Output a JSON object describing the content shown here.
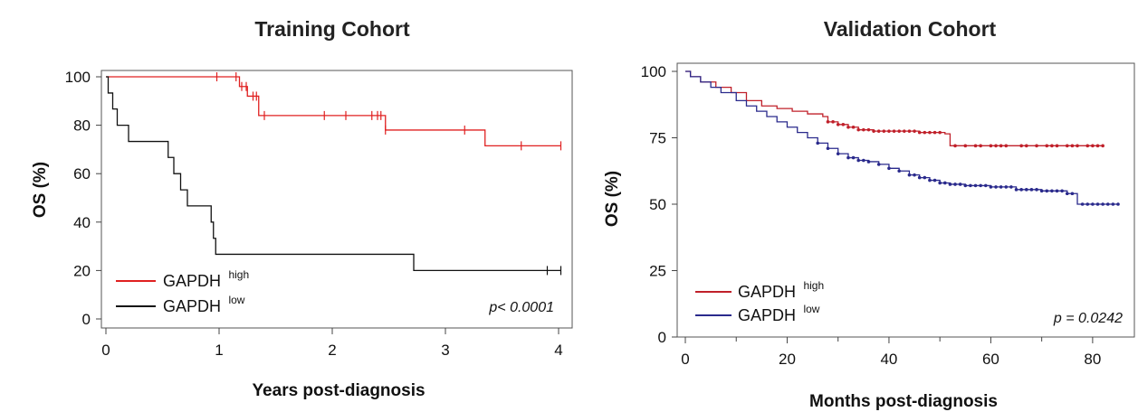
{
  "chart_data": [
    {
      "type": "line",
      "subtype": "kaplan-meier",
      "title": "Training Cohort",
      "xlabel": "Years post-diagnosis",
      "ylabel": "OS (%)",
      "xlim": [
        0,
        4
      ],
      "ylim": [
        0,
        100
      ],
      "xticks": [
        0,
        1,
        2,
        3,
        4
      ],
      "yticks": [
        0,
        20,
        40,
        60,
        80,
        100
      ],
      "frame": "box",
      "legend_position": "bottom-left",
      "legend": [
        {
          "base": "GAPDH",
          "sup": "high"
        },
        {
          "base": "GAPDH",
          "sup": "low"
        }
      ],
      "p_value_text": "p< 0.0001",
      "series": [
        {
          "label_base": "GAPDH",
          "label_sup": "high",
          "color": "#e02020",
          "x": [
            0,
            1.18,
            1.25,
            1.35,
            2.47,
            3.35,
            4.02
          ],
          "y": [
            100,
            96,
            92,
            84,
            78,
            71.5,
            71.5
          ],
          "censor_x": [
            0.98,
            1.15,
            1.2,
            1.24,
            1.3,
            1.33,
            1.4,
            1.93,
            2.12,
            2.35,
            2.4,
            2.43,
            2.47,
            3.17,
            3.67,
            4.02
          ]
        },
        {
          "label_base": "GAPDH",
          "label_sup": "low",
          "color": "#111111",
          "x": [
            0,
            0.02,
            0.06,
            0.1,
            0.2,
            0.55,
            0.6,
            0.66,
            0.72,
            0.76,
            0.93,
            0.95,
            0.97,
            2.72,
            4.02
          ],
          "y": [
            100,
            93.3,
            86.7,
            80,
            73.3,
            66.7,
            60,
            53.3,
            46.7,
            46.7,
            40,
            33.3,
            26.7,
            20,
            20
          ],
          "censor_x": [
            3.9,
            4.02
          ]
        }
      ]
    },
    {
      "type": "line",
      "subtype": "kaplan-meier",
      "title": "Validation  Cohort",
      "xlabel": "Months post-diagnosis",
      "ylabel": "OS (%)",
      "xlim": [
        0,
        85
      ],
      "ylim": [
        0,
        100
      ],
      "xticks": [
        0,
        20,
        40,
        60,
        80
      ],
      "yticks": [
        0,
        25,
        50,
        75,
        100
      ],
      "frame": "box",
      "legend_position": "bottom-left",
      "legend": [
        {
          "base": "GAPDH",
          "sup": "high"
        },
        {
          "base": "GAPDH",
          "sup": "low"
        }
      ],
      "p_value_text": "p = 0.0242",
      "series": [
        {
          "label_base": "GAPDH",
          "label_sup": "high",
          "color": "#c0202a",
          "x": [
            0,
            1,
            3,
            6,
            9,
            12,
            15,
            18,
            21,
            24,
            27,
            28,
            30,
            32,
            34,
            37,
            40,
            44,
            46,
            51,
            52,
            60,
            70,
            82
          ],
          "y": [
            100,
            98,
            96,
            94,
            92,
            89,
            87,
            86,
            85,
            84,
            83,
            81,
            80,
            79,
            78,
            77.5,
            77.5,
            77.5,
            77,
            76.5,
            72,
            72,
            72,
            72
          ],
          "censor_x": [
            28,
            29,
            30,
            31,
            32,
            33,
            34,
            35,
            36,
            37,
            38,
            39,
            40,
            41,
            42,
            43,
            44,
            45,
            46,
            47,
            48,
            49,
            50,
            53,
            55,
            57,
            58,
            60,
            61,
            62,
            63,
            66,
            67,
            69,
            71,
            72,
            73,
            75,
            76,
            77,
            79,
            80,
            81,
            82
          ]
        },
        {
          "label_base": "GAPDH",
          "label_sup": "low",
          "color": "#2a2a8c",
          "x": [
            0,
            1,
            3,
            5,
            7,
            10,
            12,
            14,
            16,
            18,
            20,
            22,
            24,
            26,
            28,
            30,
            32,
            34,
            36,
            38,
            40,
            42,
            44,
            46,
            48,
            50,
            52,
            55,
            60,
            65,
            70,
            75,
            77,
            80,
            85
          ],
          "y": [
            100,
            98,
            96,
            94,
            92,
            89,
            87,
            85,
            83,
            81,
            79,
            77,
            75,
            73,
            71,
            69,
            67.5,
            66.5,
            66,
            65,
            63.5,
            62.5,
            61,
            60,
            59,
            58,
            57.5,
            57,
            56.5,
            55.5,
            55,
            54,
            50,
            50,
            50
          ],
          "censor_x": [
            26,
            28,
            30,
            32,
            33,
            34,
            35,
            36,
            38,
            40,
            42,
            44,
            45,
            46,
            47,
            48,
            49,
            50,
            51,
            52,
            53,
            54,
            55,
            56,
            57,
            58,
            59,
            60,
            61,
            62,
            63,
            64,
            65,
            66,
            67,
            68,
            69,
            70,
            71,
            72,
            73,
            74,
            75,
            76,
            78,
            79,
            80,
            81,
            82,
            83,
            84,
            85
          ]
        }
      ]
    }
  ]
}
